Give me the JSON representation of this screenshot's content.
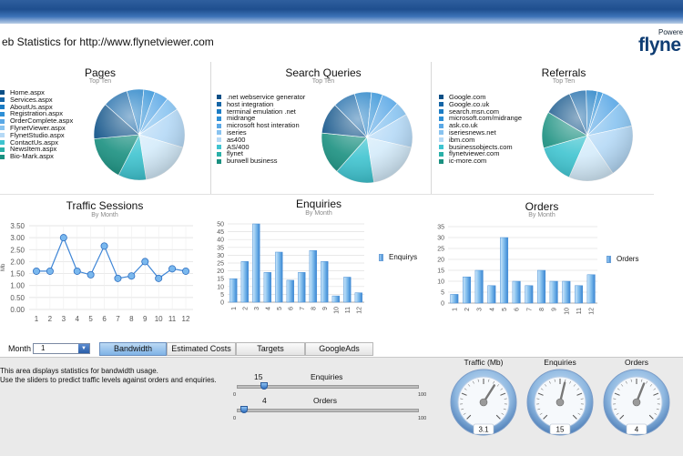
{
  "header": {
    "title": "eb Statistics for http://www.flynetviewer.com",
    "powered": "Powered",
    "logo": "flyne"
  },
  "pages_panel": {
    "title": "Pages",
    "subtitle": "Top Ten",
    "items": [
      "Home.aspx",
      "Services.aspx",
      "AboutUs.aspx",
      "Registration.aspx",
      "OrderComplete.aspx",
      "FlynetViewer.aspx",
      "FlynetStudio.aspx",
      "ContactUs.aspx",
      "NewsItem.aspx",
      "Bio-Mark.aspx"
    ],
    "colors": [
      "#0b4f86",
      "#1565a6",
      "#1b7cc4",
      "#2d8fd6",
      "#5aa8e6",
      "#88c3f0",
      "#b5d9f6",
      "#3fc4d0",
      "#2ab0a8",
      "#1a9080"
    ]
  },
  "queries_panel": {
    "title": "Search Queries",
    "subtitle": "Top Ten",
    "items": [
      ".net webservice generator",
      "host integration",
      "terminal emulation .net",
      "midrange",
      "microsoft host interation",
      "iseries",
      "as400",
      "AS/400",
      "flynet",
      "burwell business"
    ],
    "colors": [
      "#0b4f86",
      "#1565a6",
      "#1b7cc4",
      "#2d8fd6",
      "#5aa8e6",
      "#88c3f0",
      "#b5d9f6",
      "#3fc4d0",
      "#2ab0a8",
      "#1a9080"
    ]
  },
  "referrals_panel": {
    "title": "Referrals",
    "subtitle": "Top Ten",
    "items": [
      "Google.com",
      "Google.co.uk",
      "search.msn.com",
      "microsoft.com/midrange",
      "ask.co.uk",
      "iseriesnews.net",
      "ibm.com",
      "businessobjects.com",
      "flynetviewer.com",
      "ic-more.com"
    ],
    "colors": [
      "#0b4f86",
      "#1565a6",
      "#1b7cc4",
      "#2d8fd6",
      "#5aa8e6",
      "#88c3f0",
      "#b5d9f6",
      "#3fc4d0",
      "#2ab0a8",
      "#1a9080"
    ]
  },
  "chart_data": [
    {
      "type": "pie",
      "title": "Pages",
      "subtitle": "Top Ten",
      "categories": [
        "Home.aspx",
        "Services.aspx",
        "AboutUs.aspx",
        "Registration.aspx",
        "OrderComplete.aspx",
        "FlynetViewer.aspx",
        "FlynetStudio.aspx",
        "ContactUs.aspx",
        "NewsItem.aspx",
        "Bio-Mark.aspx"
      ],
      "values": [
        5,
        5,
        14,
        18,
        10,
        16,
        13,
        9,
        6,
        4
      ]
    },
    {
      "type": "pie",
      "title": "Search Queries",
      "subtitle": "Top Ten",
      "categories": [
        ".net webservice generator",
        "host integration",
        "terminal emulation .net",
        "midrange",
        "microsoft host interation",
        "iseries",
        "as400",
        "AS/400",
        "flynet",
        "burwell business"
      ],
      "values": [
        6,
        5,
        12,
        19,
        14,
        15,
        11,
        8,
        6,
        4
      ]
    },
    {
      "type": "pie",
      "title": "Referrals",
      "subtitle": "Top Ten",
      "categories": [
        "Google.com",
        "Google.co.uk",
        "search.msn.com",
        "microsoft.com/midrange",
        "ask.co.uk",
        "iseriesnews.net",
        "ibm.com",
        "businessobjects.com",
        "flynetviewer.com",
        "ic-more.com"
      ],
      "values": [
        7,
        9,
        19,
        16,
        14,
        13,
        10,
        6,
        4,
        2
      ]
    },
    {
      "type": "line",
      "title": "Traffic Sessions",
      "subtitle": "By Month",
      "ylabel": "Mb",
      "x": [
        1,
        2,
        3,
        4,
        5,
        6,
        7,
        8,
        9,
        10,
        11,
        12
      ],
      "values": [
        1.6,
        1.6,
        3.0,
        1.6,
        1.45,
        2.65,
        1.3,
        1.4,
        2.0,
        1.3,
        1.7,
        1.6
      ],
      "ylim": [
        0,
        3.5
      ],
      "yticks": [
        "0.00",
        "0.50",
        "1.00",
        "1.50",
        "2.00",
        "2.50",
        "3.00",
        "3.50"
      ],
      "grid": true
    },
    {
      "type": "bar",
      "title": "Enquiries",
      "subtitle": "By Month",
      "categories": [
        "1",
        "2",
        "3",
        "4",
        "5",
        "6",
        "7",
        "8",
        "9",
        "10",
        "11",
        "12"
      ],
      "series": [
        {
          "name": "Enquirys",
          "values": [
            15,
            26,
            50,
            19,
            32,
            14,
            19,
            33,
            26,
            4,
            16,
            6
          ]
        }
      ],
      "ylim": [
        0,
        50
      ],
      "yticks": [
        "0",
        "5",
        "10",
        "15",
        "20",
        "25",
        "30",
        "35",
        "40",
        "45",
        "50"
      ],
      "legend": "right",
      "grid": true
    },
    {
      "type": "bar",
      "title": "Orders",
      "subtitle": "By Month",
      "categories": [
        "1",
        "2",
        "3",
        "4",
        "5",
        "6",
        "7",
        "8",
        "9",
        "10",
        "11",
        "12"
      ],
      "series": [
        {
          "name": "Orders",
          "values": [
            4,
            12,
            15,
            8,
            30,
            10,
            8,
            15,
            10,
            10,
            8,
            13
          ]
        }
      ],
      "ylim": [
        0,
        35
      ],
      "yticks": [
        "0",
        "5",
        "10",
        "15",
        "20",
        "25",
        "30",
        "35"
      ],
      "legend": "right",
      "grid": true
    }
  ],
  "controls": {
    "month_label": "Month",
    "month_value": "1",
    "tabs": [
      "Bandwidth",
      "Estimated Costs",
      "Targets",
      "GoogleAds"
    ],
    "active_tab": "Bandwidth"
  },
  "description": {
    "line1": "This area displays statistics for bandwidth usage.",
    "line2": "Use the sliders to predict traffic levels against orders and enquiries."
  },
  "sliders": {
    "enquiries": {
      "label": "Enquiries",
      "value": "15",
      "min": "0",
      "max": "100",
      "fraction": 0.15
    },
    "orders": {
      "label": "Orders",
      "value": "4",
      "min": "0",
      "max": "100",
      "fraction": 0.04
    }
  },
  "gauges": [
    {
      "label": "Traffic (Mb)",
      "value": "3.1",
      "fraction": 0.62
    },
    {
      "label": "Enquiries",
      "value": "15",
      "fraction": 0.55
    },
    {
      "label": "Orders",
      "value": "4",
      "fraction": 0.58
    }
  ]
}
